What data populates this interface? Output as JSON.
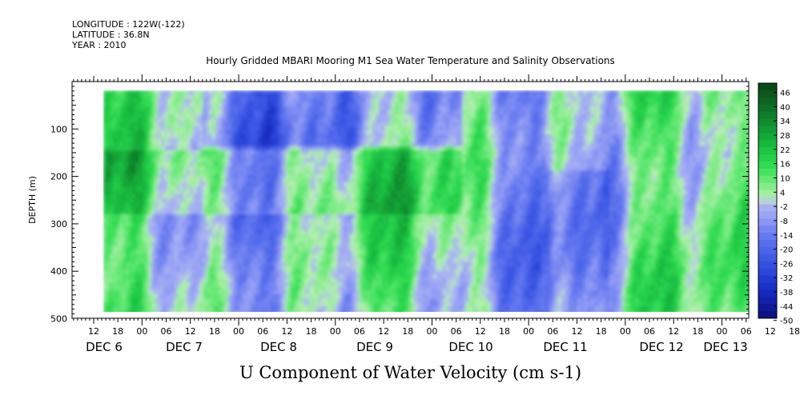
{
  "header": {
    "longitude": "LONGITUDE : 122W(-122)",
    "latitude": "LATITUDE : 36.8N",
    "year": "YEAR : 2010"
  },
  "chart_data": {
    "type": "heatmap",
    "title": "Hourly Gridded MBARI Mooring M1 Sea Water Temperature and Salinity Observations",
    "xlabel": "U Component of Water Velocity (cm s-1)",
    "ylabel": "DEPTH (m)",
    "ylim": [
      500,
      0
    ],
    "y_ticks": [
      "100",
      "200",
      "300",
      "400",
      "500"
    ],
    "x_hour_ticks": [
      "12",
      "18",
      "00",
      "06",
      "12",
      "18",
      "00",
      "06",
      "12",
      "18",
      "00",
      "06",
      "12",
      "18",
      "00",
      "06",
      "12",
      "18",
      "00",
      "06",
      "12",
      "18",
      "00",
      "06",
      "12",
      "18",
      "00",
      "06",
      "12",
      "18",
      "00",
      "06"
    ],
    "x_day_labels": [
      "DEC  6",
      "DEC  7",
      "DEC  8",
      "DEC  9",
      "DEC 10",
      "DEC 11",
      "DEC 12",
      "DEC 13"
    ],
    "colorbar": {
      "labels": [
        "46",
        "40",
        "34",
        "28",
        "22",
        "16",
        "10",
        "4",
        "-2",
        "-8",
        "-14",
        "-20",
        "-26",
        "-32",
        "-38",
        "-44",
        "-50"
      ]
    },
    "colors": {
      "strong_positive": "#0a4a1a",
      "positive": "#1ee84a",
      "weak_positive": "#9ef09a",
      "weak_negative": "#aab4f0",
      "negative": "#6f7ff0",
      "strong_negative": "#0a1090"
    }
  }
}
